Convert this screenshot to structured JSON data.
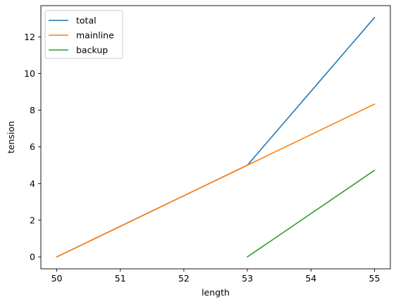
{
  "chart_data": {
    "type": "line",
    "xlabel": "length",
    "ylabel": "tension",
    "xlim": [
      49.75,
      55.25
    ],
    "ylim": [
      -0.65,
      13.7
    ],
    "xticks": [
      50,
      51,
      52,
      53,
      54,
      55
    ],
    "yticks": [
      0,
      2,
      4,
      6,
      8,
      10,
      12
    ],
    "grid": false,
    "legend_position": "top-left",
    "series": [
      {
        "name": "total",
        "color": "#1f77b4",
        "x": [
          50,
          53,
          55
        ],
        "y": [
          0,
          5.0,
          13.05
        ]
      },
      {
        "name": "mainline",
        "color": "#ff7f0e",
        "x": [
          50,
          53,
          55
        ],
        "y": [
          0,
          5.0,
          8.33
        ]
      },
      {
        "name": "backup",
        "color": "#2ca02c",
        "x": [
          53,
          55
        ],
        "y": [
          0,
          4.72
        ]
      }
    ]
  }
}
